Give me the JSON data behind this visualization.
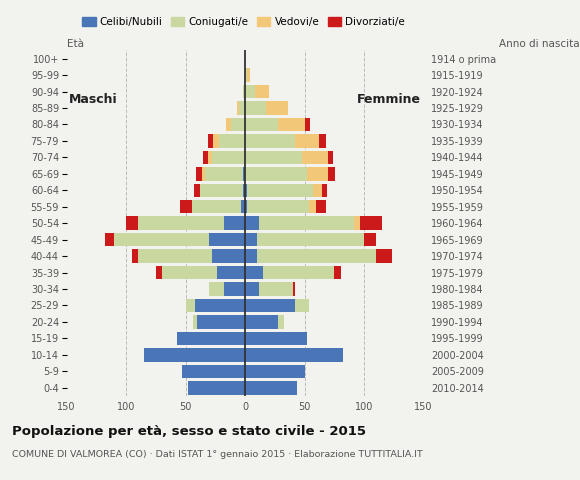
{
  "age_groups": [
    "0-4",
    "5-9",
    "10-14",
    "15-19",
    "20-24",
    "25-29",
    "30-34",
    "35-39",
    "40-44",
    "45-49",
    "50-54",
    "55-59",
    "60-64",
    "65-69",
    "70-74",
    "75-79",
    "80-84",
    "85-89",
    "90-94",
    "95-99",
    "100+"
  ],
  "birth_years": [
    "2010-2014",
    "2005-2009",
    "2000-2004",
    "1995-1999",
    "1990-1994",
    "1985-1989",
    "1980-1984",
    "1975-1979",
    "1970-1974",
    "1965-1969",
    "1960-1964",
    "1955-1959",
    "1950-1954",
    "1945-1949",
    "1940-1944",
    "1935-1939",
    "1930-1934",
    "1925-1929",
    "1920-1924",
    "1915-1919",
    "1914 o prima"
  ],
  "males_celibe": [
    48,
    53,
    85,
    57,
    40,
    42,
    18,
    24,
    28,
    30,
    18,
    3,
    2,
    2,
    0,
    0,
    0,
    0,
    0,
    0,
    0
  ],
  "males_coniugato": [
    0,
    0,
    0,
    0,
    4,
    8,
    12,
    46,
    62,
    80,
    72,
    42,
    36,
    32,
    28,
    22,
    12,
    5,
    2,
    0,
    0
  ],
  "males_vedovo": [
    0,
    0,
    0,
    0,
    0,
    0,
    0,
    0,
    0,
    0,
    0,
    0,
    0,
    2,
    3,
    5,
    4,
    2,
    0,
    0,
    0
  ],
  "males_divorziato": [
    0,
    0,
    0,
    0,
    0,
    0,
    0,
    5,
    5,
    8,
    10,
    10,
    5,
    5,
    4,
    4,
    0,
    0,
    0,
    0,
    0
  ],
  "fem_nubile": [
    44,
    50,
    82,
    52,
    28,
    42,
    12,
    15,
    10,
    10,
    12,
    2,
    2,
    0,
    0,
    0,
    0,
    0,
    0,
    0,
    0
  ],
  "fem_coniugata": [
    0,
    0,
    0,
    0,
    5,
    12,
    28,
    60,
    100,
    90,
    80,
    52,
    55,
    52,
    48,
    42,
    28,
    18,
    8,
    2,
    0
  ],
  "fem_vedova": [
    0,
    0,
    0,
    0,
    0,
    0,
    0,
    0,
    0,
    0,
    5,
    6,
    8,
    18,
    22,
    20,
    22,
    18,
    12,
    2,
    0
  ],
  "fem_divorziata": [
    0,
    0,
    0,
    0,
    0,
    0,
    2,
    6,
    14,
    10,
    18,
    8,
    4,
    6,
    4,
    6,
    5,
    0,
    0,
    0,
    0
  ],
  "color_celibe": "#4a76b8",
  "color_coniugato": "#c8d8a0",
  "color_vedovo": "#f2c878",
  "color_divorziato": "#cc1a1a",
  "title": "Popolazione per età, sesso e stato civile - 2015",
  "subtitle": "COMUNE DI VALMOREA (CO) · Dati ISTAT 1° gennaio 2015 · Elaborazione TUTTITALIA.IT",
  "xlim": 150,
  "bg_color": "#f2f2ee"
}
